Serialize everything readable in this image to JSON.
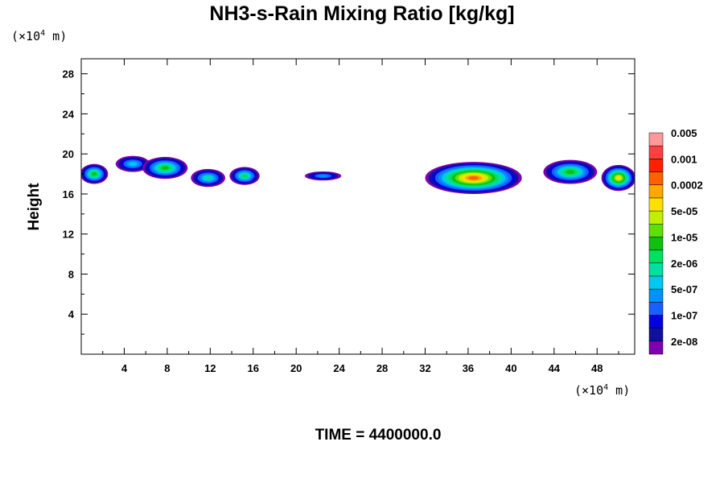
{
  "chart_data": {
    "type": "heatmap",
    "title": "NH3-s-Rain Mixing Ratio [kg/kg]",
    "ylabel": "Height",
    "unit_label_prefix": "(×10",
    "unit_label_exp": "4",
    "unit_label_suffix": " m)",
    "footer": "TIME = 4400000.0",
    "xlim": [
      0,
      51.5
    ],
    "ylim": [
      0,
      29.5
    ],
    "x_ticks": [
      4,
      8,
      12,
      16,
      20,
      24,
      28,
      32,
      36,
      40,
      44,
      48
    ],
    "y_ticks": [
      4,
      8,
      12,
      16,
      20,
      24,
      28
    ],
    "colorbar": {
      "colors": [
        "#7f00b0",
        "#1010a0",
        "#0000e0",
        "#1860ff",
        "#0090ff",
        "#00c8f0",
        "#00e0a0",
        "#00e060",
        "#10c010",
        "#60e000",
        "#c0f000",
        "#ffe000",
        "#ffa800",
        "#ff6000",
        "#ff2000",
        "#ff4040",
        "#ff9898"
      ],
      "labels": [
        "2e-08",
        "1e-07",
        "5e-07",
        "2e-06",
        "1e-05",
        "5e-05",
        "0.0002",
        "0.001",
        "0.005"
      ]
    },
    "blobs": [
      {
        "x": 1.2,
        "y": 18.0,
        "w": 2.6,
        "h": 2.0,
        "level": 8
      },
      {
        "x": 4.8,
        "y": 19.0,
        "w": 3.2,
        "h": 1.6,
        "level": 5
      },
      {
        "x": 7.8,
        "y": 18.6,
        "w": 4.2,
        "h": 2.2,
        "level": 8
      },
      {
        "x": 11.8,
        "y": 17.6,
        "w": 3.2,
        "h": 1.8,
        "level": 6
      },
      {
        "x": 15.2,
        "y": 17.8,
        "w": 2.8,
        "h": 1.8,
        "level": 7
      },
      {
        "x": 22.5,
        "y": 17.8,
        "w": 3.4,
        "h": 0.9,
        "level": 4
      },
      {
        "x": 36.5,
        "y": 17.6,
        "w": 9.0,
        "h": 3.2,
        "level": 13
      },
      {
        "x": 45.5,
        "y": 18.2,
        "w": 5.0,
        "h": 2.4,
        "level": 8
      },
      {
        "x": 50.0,
        "y": 17.6,
        "w": 3.2,
        "h": 2.6,
        "level": 11
      }
    ]
  }
}
